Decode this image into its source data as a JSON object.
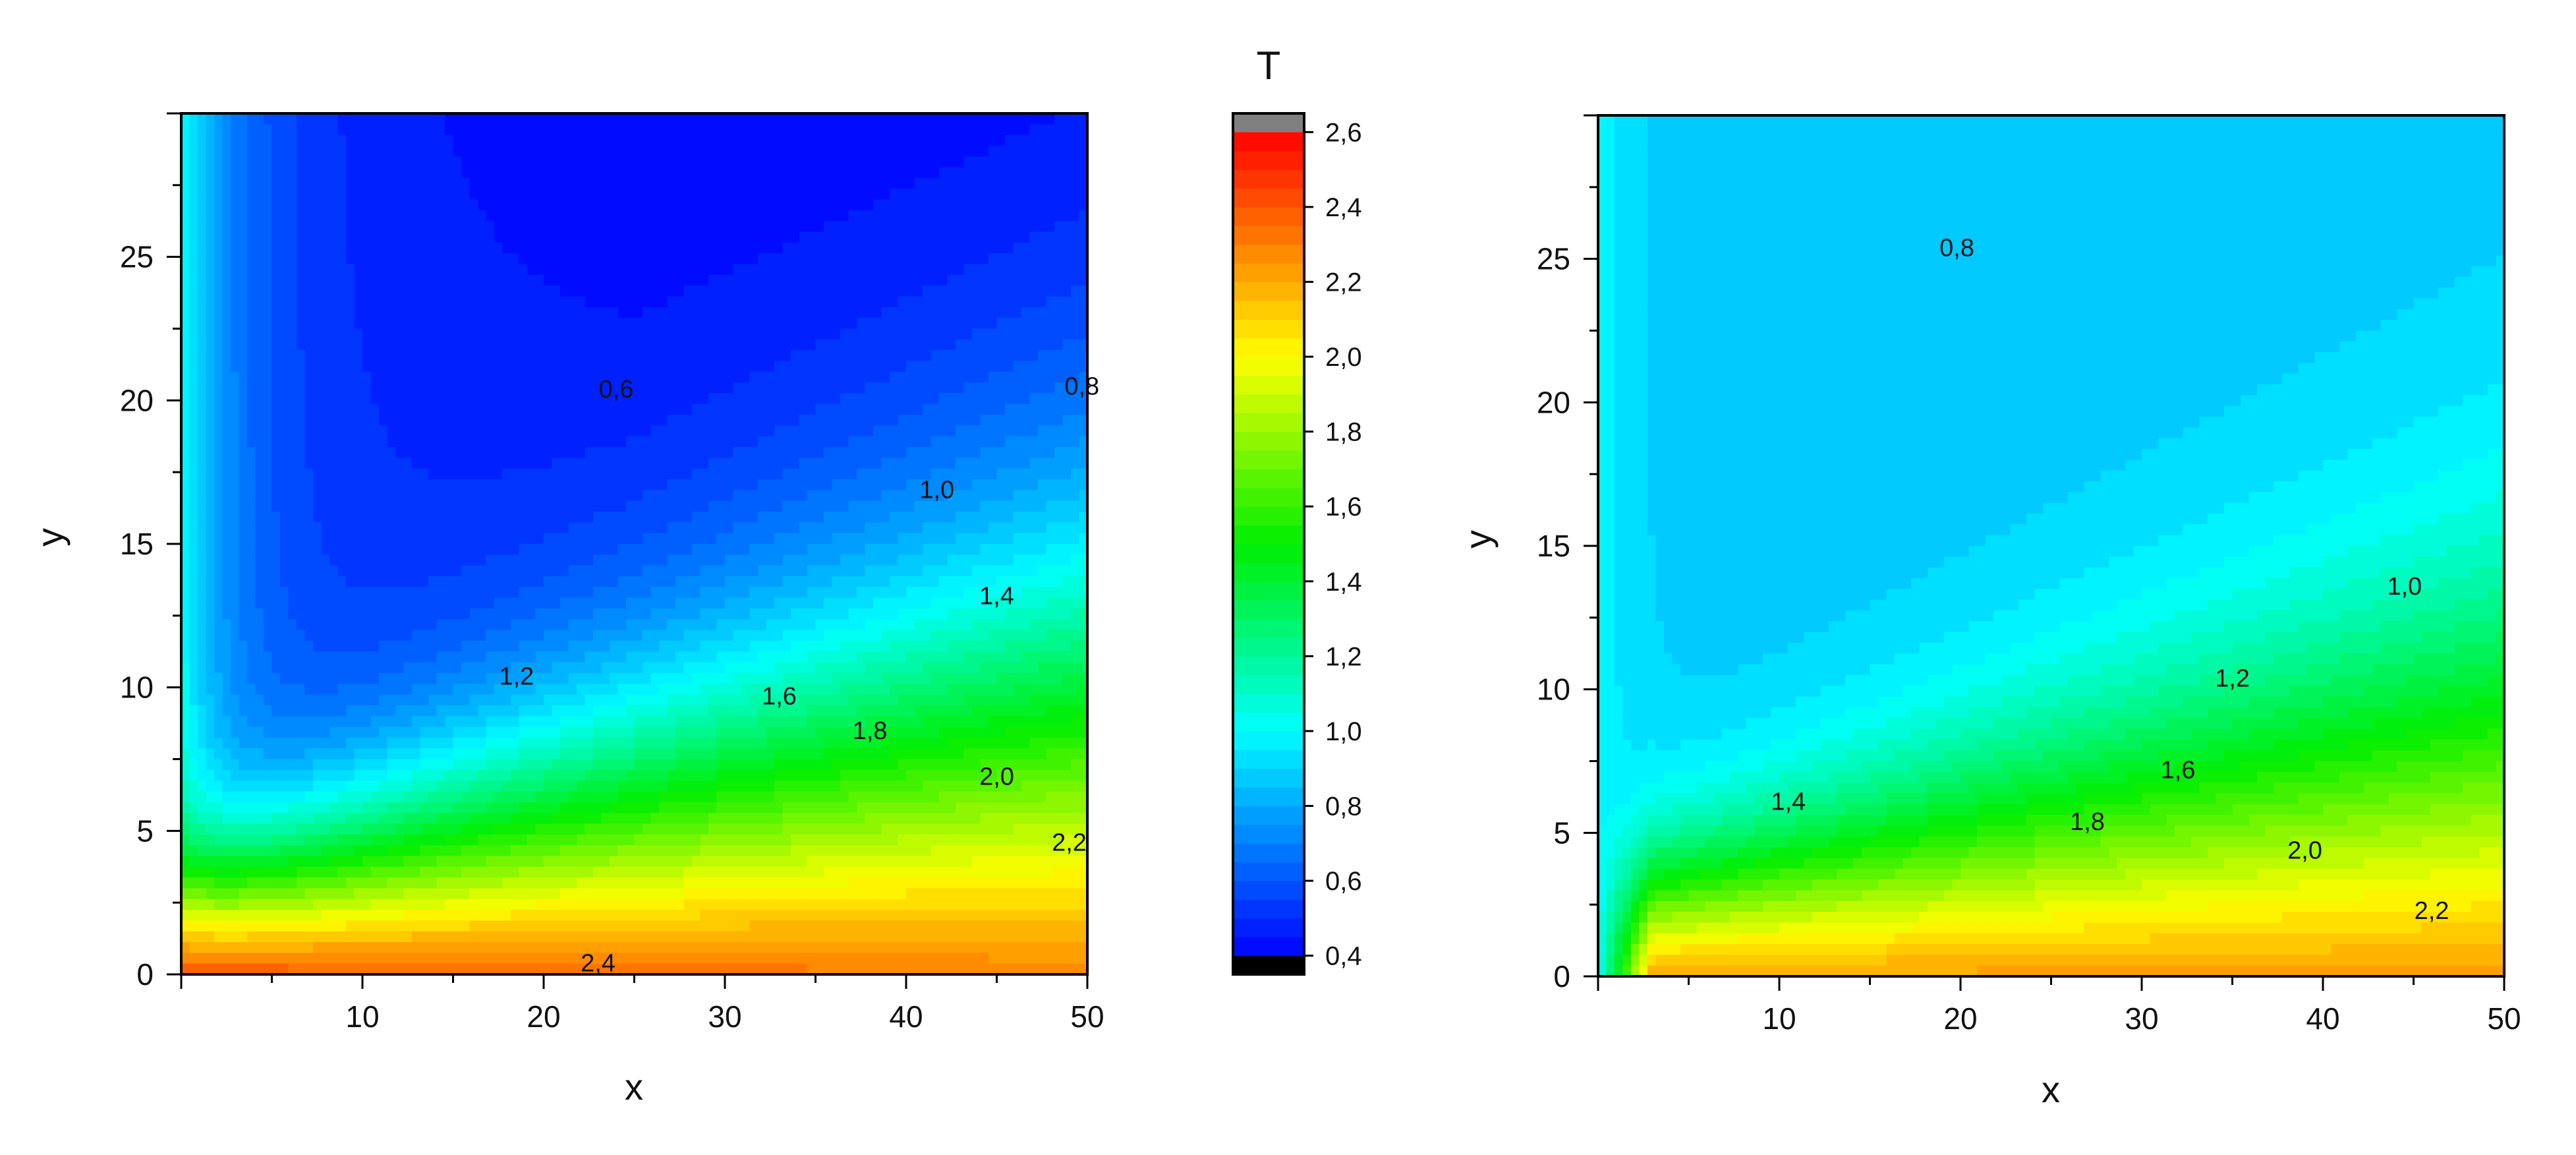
{
  "colorbar": {
    "title": "T",
    "min": 0.35,
    "max": 2.65,
    "tick_labels": [
      "0,4",
      "0,6",
      "0,8",
      "1,0",
      "1,2",
      "1,4",
      "1,6",
      "1,8",
      "2,0",
      "2,2",
      "2,4",
      "2,6"
    ],
    "tick_values": [
      0.4,
      0.6,
      0.8,
      1.0,
      1.2,
      1.4,
      1.6,
      1.8,
      2.0,
      2.2,
      2.4,
      2.6
    ],
    "underflow_color": "#000000",
    "overflow_color": "#808080",
    "colors": {
      "stops": [
        "#0000ff",
        "#00ffff",
        "#00ee00",
        "#ffff00",
        "#ff8000",
        "#ff0000"
      ],
      "stop_values": [
        0.4,
        1.0,
        1.5,
        2.0,
        2.3,
        2.6
      ]
    }
  },
  "chart_data": [
    {
      "type": "heatmap",
      "subtype": "filled-contour",
      "xlabel": "x",
      "ylabel": "y",
      "xlim": [
        0,
        50
      ],
      "ylim": [
        0,
        30
      ],
      "xticks": [
        "10",
        "20",
        "30",
        "40",
        "50"
      ],
      "yticks": [
        "0",
        "5",
        "10",
        "15",
        "20",
        "25"
      ],
      "contour_labels": [
        {
          "text": "0,6",
          "x": 24,
          "y": 20.4
        },
        {
          "text": "0,8",
          "x": 49.7,
          "y": 20.5
        },
        {
          "text": "1,0",
          "x": 41.7,
          "y": 16.9
        },
        {
          "text": "1,2",
          "x": 18.5,
          "y": 10.4
        },
        {
          "text": "1,4",
          "x": 45,
          "y": 13.2
        },
        {
          "text": "1,6",
          "x": 33,
          "y": 9.7
        },
        {
          "text": "1,8",
          "x": 38,
          "y": 8.5
        },
        {
          "text": "2,0",
          "x": 45,
          "y": 6.9
        },
        {
          "text": "2,2",
          "x": 49,
          "y": 4.6
        },
        {
          "text": "2,4",
          "x": 23,
          "y": 0.4
        }
      ],
      "field": {
        "T_bottom": 2.4,
        "T_bottom_far": 2.28,
        "T_top": 0.5,
        "T_left": 1.02,
        "ridge_x": 7,
        "boundary_layer_thickness_at_x0": 2.2,
        "boundary_layer_growth": 0.11
      }
    },
    {
      "type": "heatmap",
      "subtype": "filled-contour",
      "xlabel": "x",
      "ylabel": "y",
      "xlim": [
        0,
        50
      ],
      "ylim": [
        0,
        30
      ],
      "xticks": [
        "10",
        "20",
        "30",
        "40",
        "50"
      ],
      "yticks": [
        "0",
        "5",
        "10",
        "15",
        "20",
        "25"
      ],
      "contour_labels": [
        {
          "text": "0,8",
          "x": 19.8,
          "y": 25.4
        },
        {
          "text": "1,0",
          "x": 44.5,
          "y": 13.6
        },
        {
          "text": "1,2",
          "x": 35,
          "y": 10.4
        },
        {
          "text": "1,4",
          "x": 10.5,
          "y": 6.1
        },
        {
          "text": "1,6",
          "x": 32,
          "y": 7.2
        },
        {
          "text": "1,8",
          "x": 27,
          "y": 5.4
        },
        {
          "text": "2,0",
          "x": 39,
          "y": 4.4
        },
        {
          "text": "2,2",
          "x": 46,
          "y": 2.3
        }
      ],
      "field": {
        "T_bottom": 2.22,
        "T_top": 0.86,
        "T_left": 1.0,
        "valley_x": 17,
        "valley_min": 0.76,
        "boundary_layer_thickness_at_x0": 2.0,
        "boundary_layer_growth": 0.09
      }
    }
  ]
}
